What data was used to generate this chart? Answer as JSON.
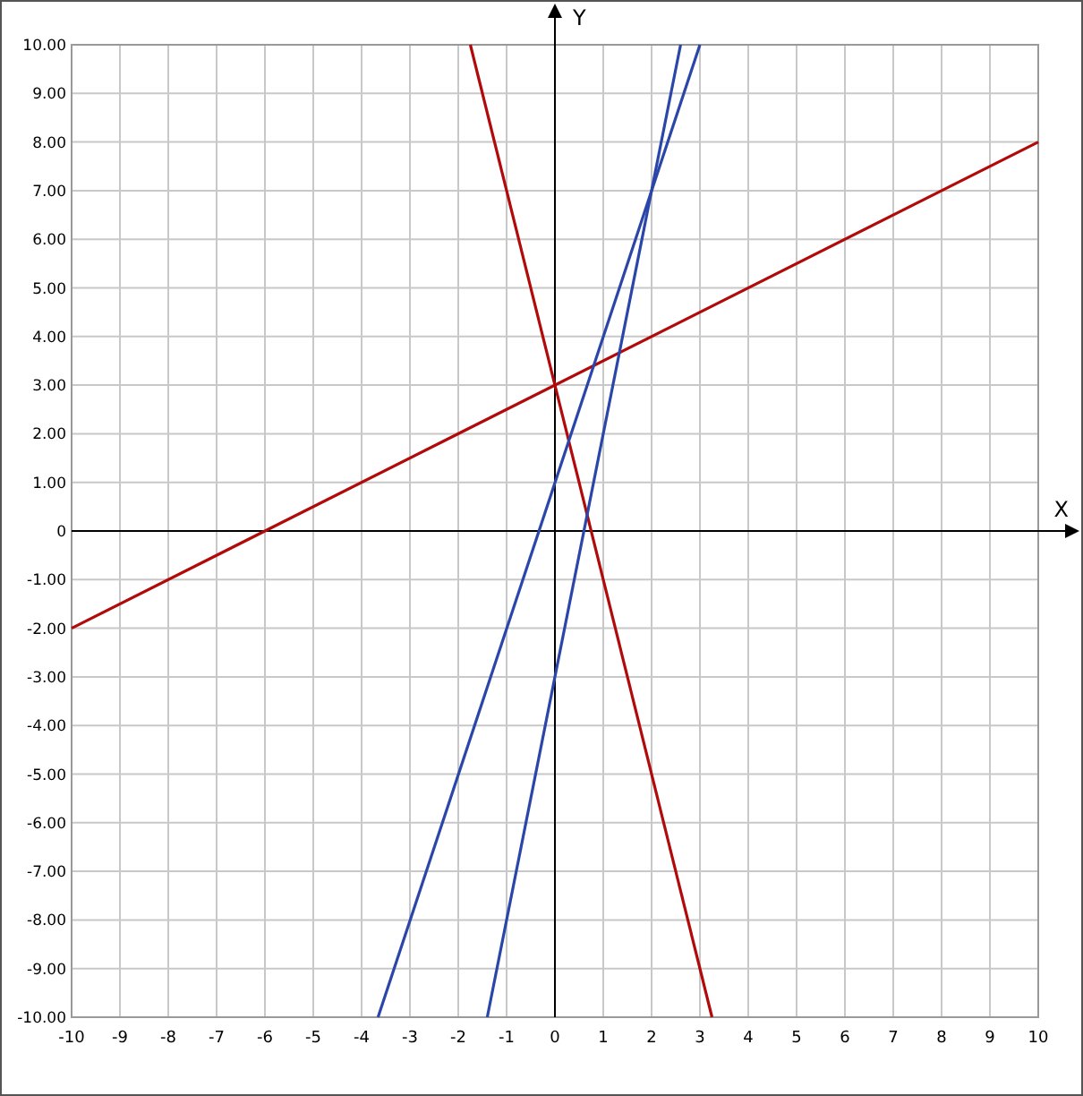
{
  "chart_data": {
    "type": "line",
    "xlabel": "X",
    "ylabel": "Y",
    "xlim": [
      -10,
      10
    ],
    "ylim": [
      -10,
      10
    ],
    "xticks": [
      -10,
      -9,
      -8,
      -7,
      -6,
      -5,
      -4,
      -3,
      -2,
      -1,
      0,
      1,
      2,
      3,
      4,
      5,
      6,
      7,
      8,
      9,
      10
    ],
    "yticks": [
      {
        "value": -10,
        "label": "-10.00"
      },
      {
        "value": -9,
        "label": "-9.00"
      },
      {
        "value": -8,
        "label": "-8.00"
      },
      {
        "value": -7,
        "label": "-7.00"
      },
      {
        "value": -6,
        "label": "-6.00"
      },
      {
        "value": -5,
        "label": "-5.00"
      },
      {
        "value": -4,
        "label": "-4.00"
      },
      {
        "value": -3,
        "label": "-3.00"
      },
      {
        "value": -2,
        "label": "-2.00"
      },
      {
        "value": -1,
        "label": "-1.00"
      },
      {
        "value": 0,
        "label": "0"
      },
      {
        "value": 1,
        "label": "1.00"
      },
      {
        "value": 2,
        "label": "2.00"
      },
      {
        "value": 3,
        "label": "3.00"
      },
      {
        "value": 4,
        "label": "4.00"
      },
      {
        "value": 5,
        "label": "5.00"
      },
      {
        "value": 6,
        "label": "6.00"
      },
      {
        "value": 7,
        "label": "7.00"
      },
      {
        "value": 8,
        "label": "8.00"
      },
      {
        "value": 9,
        "label": "9.00"
      },
      {
        "value": 10,
        "label": "10.00"
      }
    ],
    "grid": true,
    "marker": "none",
    "line_style": "solid",
    "series": [
      {
        "color": "#b00a0a",
        "x": [
          -10,
          10
        ],
        "values": [
          -2,
          8
        ]
      },
      {
        "color": "#b00a0a",
        "x": [
          -1.75,
          3.25
        ],
        "values": [
          10,
          -10
        ]
      },
      {
        "color": "#2a46a8",
        "x": [
          -3.66,
          3
        ],
        "values": [
          -10,
          10
        ]
      },
      {
        "color": "#2a46a8",
        "x": [
          -1.4,
          2.6
        ],
        "values": [
          -10,
          10
        ]
      }
    ]
  }
}
